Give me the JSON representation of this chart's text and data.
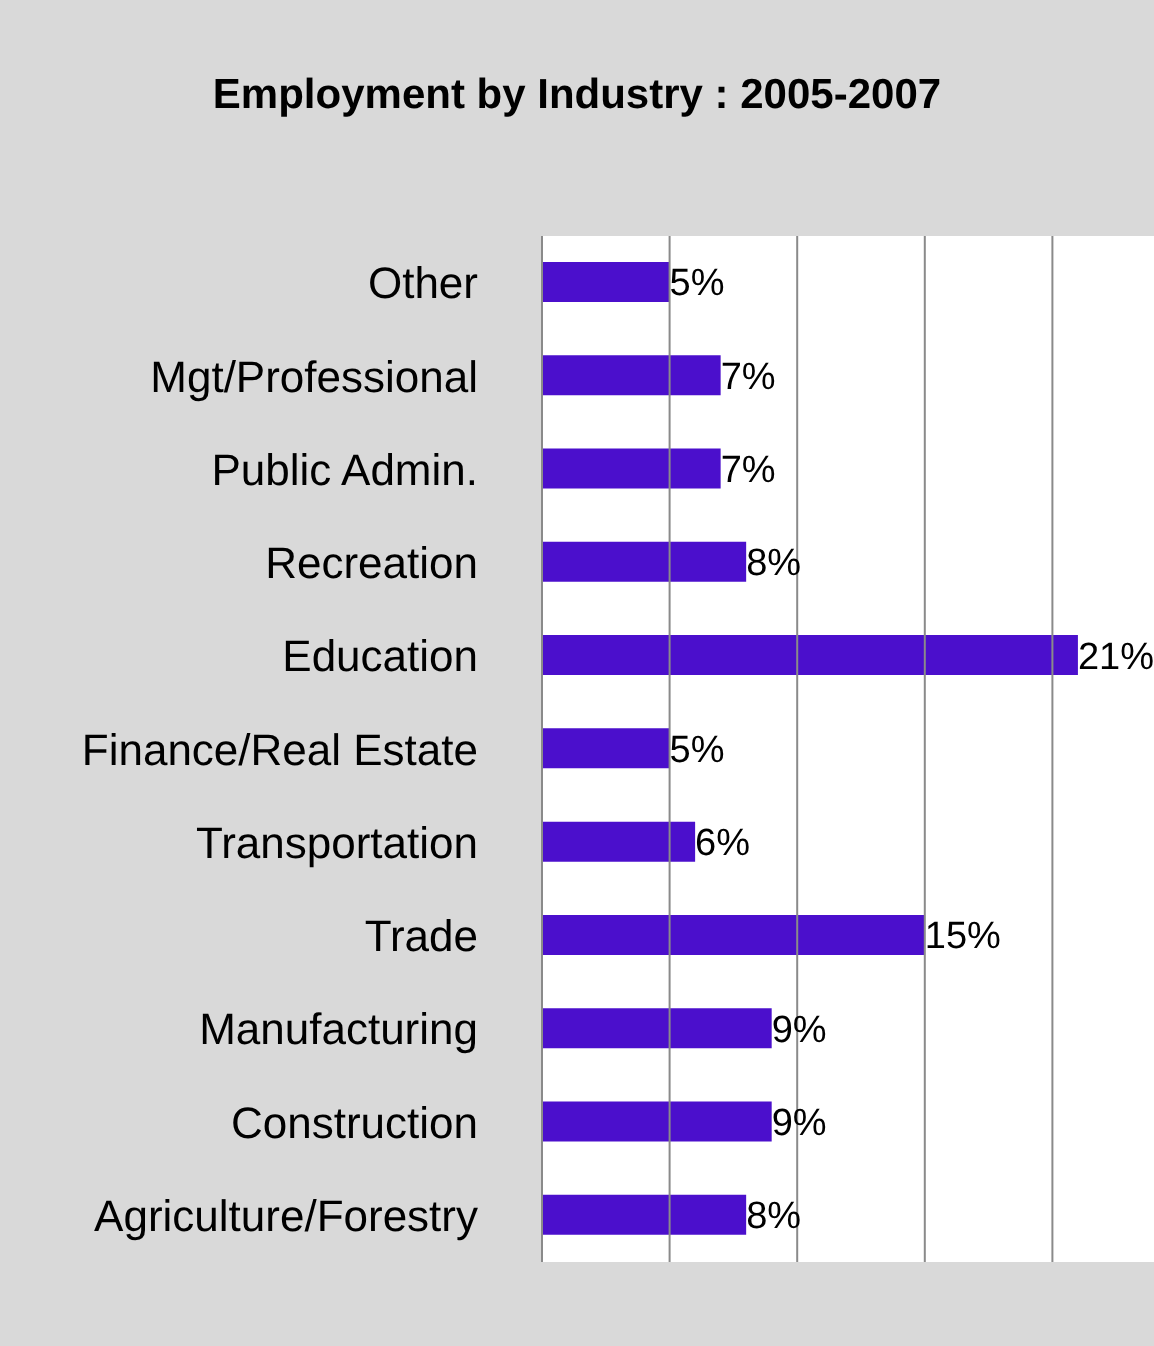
{
  "chart_data": {
    "type": "bar",
    "orientation": "horizontal",
    "title": "Employment by Industry : 2005-2007",
    "categories": [
      "Other",
      "Mgt/Professional",
      "Public Admin.",
      "Recreation",
      "Education",
      "Finance/Real Estate",
      "Transportation",
      "Trade",
      "Manufacturing",
      "Construction",
      "Agriculture/Forestry"
    ],
    "values": [
      5,
      7,
      7,
      8,
      21,
      5,
      6,
      15,
      9,
      9,
      8
    ],
    "value_labels": [
      "5%",
      "7%",
      "7%",
      "8%",
      "21%",
      "5%",
      "6%",
      "15%",
      "9%",
      "9%",
      "8%"
    ],
    "color": "#4b0fcc",
    "xlim": [
      0,
      25
    ],
    "xticks": [
      {
        "value": 0,
        "label": null
      },
      {
        "value": 5,
        "label": null
      },
      {
        "value": 10,
        "label": null
      },
      {
        "value": 15,
        "label": null
      },
      {
        "value": 20,
        "label": null
      },
      {
        "value": 25,
        "label": null
      }
    ],
    "tick_labels": "y",
    "grid": "x"
  }
}
